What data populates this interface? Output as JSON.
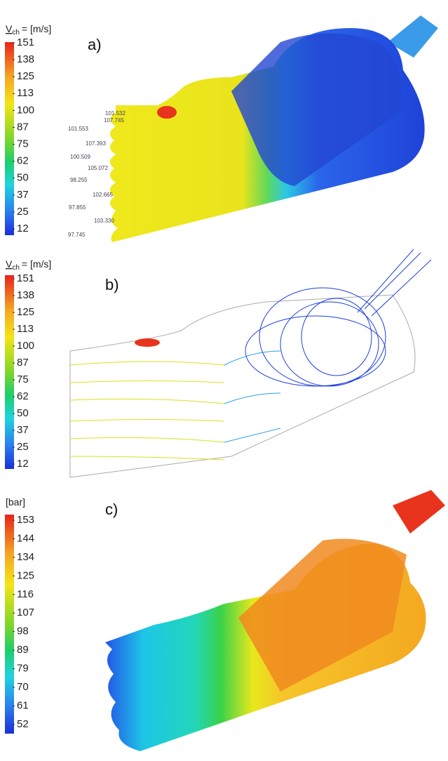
{
  "panels": [
    {
      "label": "a)",
      "symbol": "V",
      "subscript": "ch",
      "unit": "= [m/s]",
      "colorbar_ticks": [
        151,
        138,
        125,
        113,
        100,
        87,
        75,
        62,
        50,
        37,
        25,
        12
      ],
      "probes": [
        "101.532",
        "107.745",
        "101.553",
        "107.393",
        "100.509",
        "105.072",
        "98.255",
        "102.665",
        "97.855",
        "103.330",
        "97.745"
      ]
    },
    {
      "label": "b)",
      "symbol": "V",
      "subscript": "ch",
      "unit": "= [m/s]",
      "colorbar_ticks": [
        151,
        138,
        125,
        113,
        100,
        87,
        75,
        62,
        50,
        37,
        25,
        12
      ]
    },
    {
      "label": "c)",
      "unit": "[bar]",
      "colorbar_ticks": [
        153,
        144,
        134,
        125,
        116,
        107,
        98,
        89,
        79,
        70,
        61,
        52
      ]
    }
  ]
}
